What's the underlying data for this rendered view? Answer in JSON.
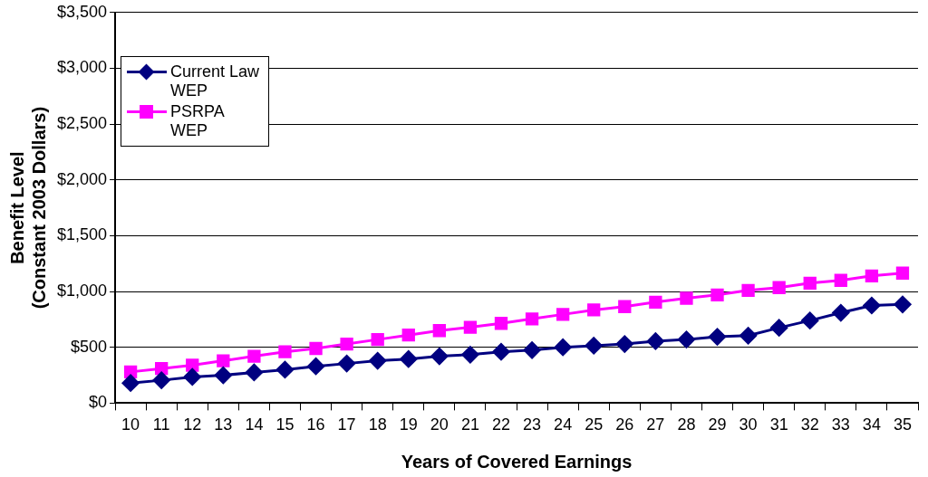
{
  "chart_data": {
    "type": "line",
    "xlabel": "Years of Covered Earnings",
    "ylabel": "Benefit Level\n(Constant 2003 Dollars)",
    "categories": [
      "10",
      "11",
      "12",
      "13",
      "14",
      "15",
      "16",
      "17",
      "18",
      "19",
      "20",
      "21",
      "22",
      "23",
      "24",
      "25",
      "26",
      "27",
      "28",
      "29",
      "30",
      "31",
      "32",
      "33",
      "34",
      "35"
    ],
    "series": [
      {
        "name": "Current Law WEP",
        "color": "#000080",
        "marker": "diamond",
        "values": [
          180,
          205,
          235,
          250,
          275,
          300,
          330,
          355,
          380,
          395,
          420,
          435,
          460,
          475,
          500,
          515,
          530,
          555,
          570,
          595,
          605,
          675,
          740,
          810,
          875,
          885
        ]
      },
      {
        "name": "PSRPA WEP",
        "color": "#ff00ff",
        "marker": "square",
        "values": [
          280,
          310,
          340,
          380,
          420,
          460,
          490,
          530,
          570,
          610,
          650,
          680,
          715,
          755,
          795,
          835,
          865,
          905,
          940,
          970,
          1010,
          1035,
          1075,
          1100,
          1140,
          1165
        ]
      }
    ],
    "ylim": [
      0,
      3500
    ],
    "yticks": [
      {
        "value": 0,
        "label": "$0"
      },
      {
        "value": 500,
        "label": "$500"
      },
      {
        "value": 1000,
        "label": "$1,000"
      },
      {
        "value": 1500,
        "label": "$1,500"
      },
      {
        "value": 2000,
        "label": "$2,000"
      },
      {
        "value": 2500,
        "label": "$2,500"
      },
      {
        "value": 3000,
        "label": "$3,000"
      },
      {
        "value": 3500,
        "label": "$3,500"
      }
    ],
    "grid": "y",
    "legend": "top left"
  }
}
